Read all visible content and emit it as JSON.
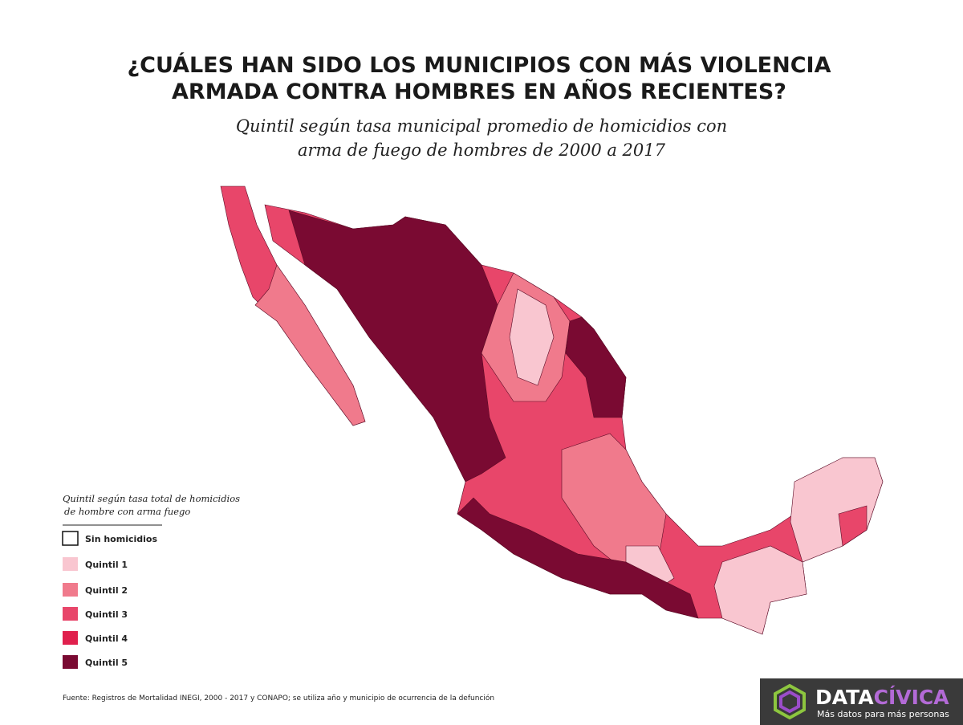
{
  "header": {
    "title_lines": [
      "¿CUÁLES HAN SIDO LOS MUNICIPIOS CON MÁS VIOLENCIA",
      "ARMADA CONTRA HOMBRES EN AÑOS RECIENTES?"
    ],
    "subtitle_lines": [
      "Quintil según tasa municipal promedio de homicidios con",
      "arma de fuego de hombres de 2000 a 2017"
    ]
  },
  "legend": {
    "title_lines": [
      "Quintil según tasa total de homicidios",
      "de hombre con arma fuego"
    ],
    "items": [
      {
        "label": "Sin homicidios",
        "color": "#ffffff"
      },
      {
        "label": "Quintil 1",
        "color": "#f9c6d0"
      },
      {
        "label": "Quintil 2",
        "color": "#f07a8c"
      },
      {
        "label": "Quintil 3",
        "color": "#e8466a"
      },
      {
        "label": "Quintil 4",
        "color": "#e0204d"
      },
      {
        "label": "Quintil 5",
        "color": "#7a0a32"
      }
    ]
  },
  "source": "Fuente: Registros de Mortalidad INEGI, 2000 - 2017 y CONAPO; se utiliza año y municipio de ocurrencia de la defunción",
  "logo": {
    "name_a": "DATA",
    "name_b": "CÍVICA",
    "tagline": "Más datos para más personas"
  }
}
